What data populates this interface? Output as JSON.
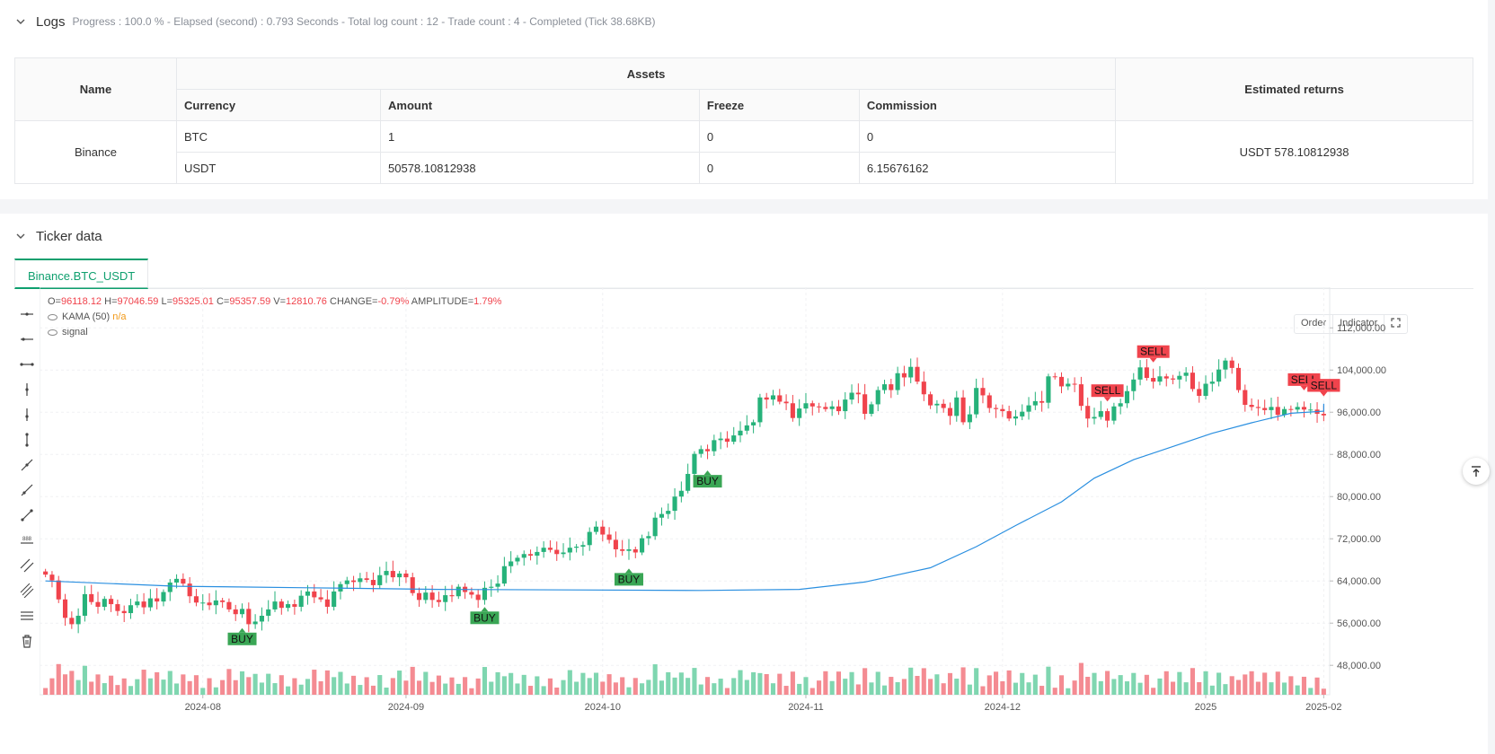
{
  "logs": {
    "title": "Logs",
    "meta": "Progress : 100.0 % - Elapsed (second) : 0.793  Seconds - Total log count : 12 - Trade count : 4 - Completed (Tick 38.68KB)",
    "table": {
      "h_name": "Name",
      "h_assets": "Assets",
      "h_returns": "Estimated returns",
      "h_currency": "Currency",
      "h_amount": "Amount",
      "h_freeze": "Freeze",
      "h_commission": "Commission",
      "exchange": "Binance",
      "returns": "USDT 578.10812938",
      "rows": [
        {
          "currency": "BTC",
          "amount": "1",
          "freeze": "0",
          "commission": "0"
        },
        {
          "currency": "USDT",
          "amount": "50578.10812938",
          "freeze": "0",
          "commission": "6.15676162"
        }
      ]
    }
  },
  "ticker": {
    "title": "Ticker data",
    "tab": "Binance.BTC_USDT",
    "buttons": {
      "order": "Order",
      "indicator": "Indicator"
    },
    "legend": {
      "ohlc": [
        {
          "k": "O=",
          "v": "96118.12"
        },
        {
          "k": " H=",
          "v": "97046.59"
        },
        {
          "k": " L=",
          "v": "95325.01"
        },
        {
          "k": " C=",
          "v": "95357.59"
        },
        {
          "k": " V=",
          "v": "12810.76"
        },
        {
          "k": " CHANGE=",
          "v": "-0.79%"
        },
        {
          "k": " AMPLITUDE=",
          "v": "1.79%"
        }
      ],
      "kama": "KAMA (50)",
      "kama_value": "n/a",
      "signal": "signal"
    }
  },
  "chart_data": {
    "type": "candlestick",
    "x_ticks": [
      "2024-08",
      "2024-09",
      "2024-10",
      "2024-11",
      "2024-12",
      "2025",
      "2025-02"
    ],
    "y_ticks": [
      "112,000.00",
      "104,000.00",
      "96,000.00",
      "88,000.00",
      "80,000.00",
      "72,000.00",
      "64,000.00",
      "56,000.00",
      "48,000.00"
    ],
    "ylim": [
      44800,
      118000
    ],
    "kama_series_name": "KAMA (50)",
    "kama_points": [
      [
        0,
        64000
      ],
      [
        20,
        63000
      ],
      [
        40,
        62700
      ],
      [
        60,
        62400
      ],
      [
        80,
        62300
      ],
      [
        100,
        62200
      ],
      [
        115,
        62400
      ],
      [
        125,
        63800
      ],
      [
        135,
        66500
      ],
      [
        142,
        70500
      ],
      [
        148,
        74500
      ],
      [
        155,
        79000
      ],
      [
        160,
        83500
      ],
      [
        166,
        87000
      ],
      [
        172,
        89500
      ],
      [
        178,
        92000
      ],
      [
        184,
        94000
      ],
      [
        190,
        95800
      ],
      [
        200,
        96200
      ],
      [
        220,
        96400
      ],
      [
        240,
        96700
      ],
      [
        265,
        97600
      ],
      [
        280,
        97500
      ]
    ],
    "closes": [
      65200,
      64100,
      60500,
      57000,
      55800,
      57400,
      61500,
      60000,
      59100,
      60600,
      59600,
      58300,
      57900,
      59400,
      60100,
      59000,
      60700,
      60100,
      61900,
      63700,
      64400,
      63500,
      61100,
      59900,
      59900,
      59400,
      60300,
      60000,
      58600,
      57700,
      58700,
      55800,
      56300,
      57400,
      58600,
      60100,
      58900,
      59600,
      59100,
      61200,
      62000,
      60900,
      60500,
      59100,
      62000,
      63400,
      64100,
      63800,
      64500,
      64200,
      63200,
      65100,
      65900,
      64700,
      65400,
      64700,
      61700,
      60400,
      61800,
      60400,
      60000,
      61300,
      61100,
      62900,
      61900,
      61400,
      60400,
      62700,
      62900,
      63500,
      66800,
      67700,
      68400,
      69100,
      68800,
      69500,
      70300,
      69900,
      69100,
      69400,
      70300,
      70500,
      70800,
      73300,
      74300,
      72800,
      71800,
      70000,
      69700,
      70000,
      69400,
      72100,
      72500,
      76000,
      76700,
      77300,
      80000,
      81100,
      84300,
      88100,
      89000,
      88600,
      90700,
      91000,
      90400,
      91600,
      92500,
      93500,
      94100,
      98800,
      98400,
      99200,
      98000,
      97700,
      94900,
      96700,
      97700,
      97100,
      97000,
      96600,
      97100,
      96200,
      98400,
      99700,
      99400,
      95700,
      97500,
      100200,
      101300,
      100200,
      103400,
      102600,
      104600,
      101800,
      99400,
      97300,
      97600,
      96800,
      95300,
      98800,
      94100,
      95600,
      100600,
      99200,
      96800,
      96600,
      96200,
      94800,
      95200,
      96100,
      97300,
      98100,
      97800,
      102800,
      102700,
      100900,
      101400,
      101300,
      97200,
      94800,
      95100,
      96200,
      94400,
      97100,
      97700,
      100000,
      102200,
      104500,
      102500,
      101800,
      102800,
      102400,
      102200,
      102900,
      103500,
      100400,
      99100,
      101400,
      101800,
      104100,
      105800,
      104400,
      100200,
      97400,
      97000,
      96800,
      96400,
      97000,
      95500,
      96600,
      96500,
      97000,
      96500,
      96500,
      95700,
      95400
    ]
  }
}
